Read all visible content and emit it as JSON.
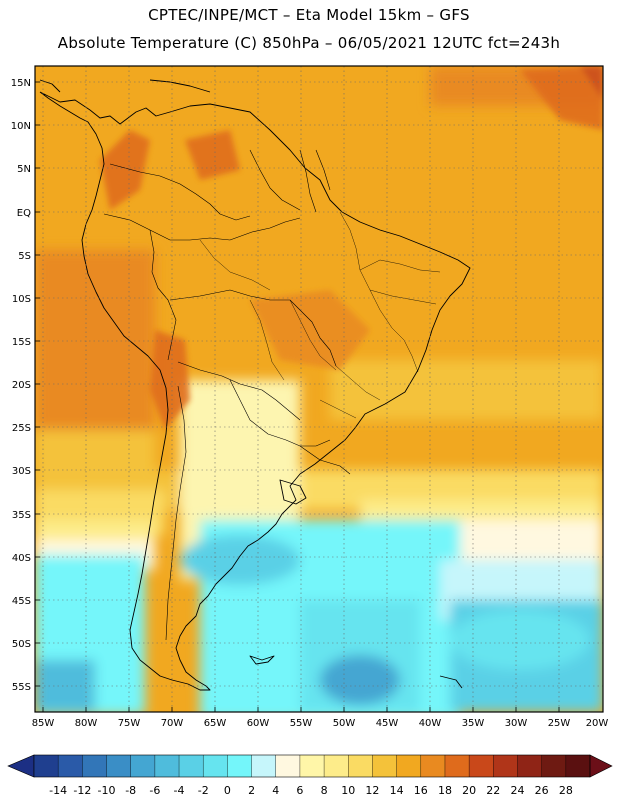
{
  "header": {
    "line1": "CPTEC/INPE/MCT –  Eta Model 15km – GFS",
    "line2": "Absolute Temperature (C) 850hPa – 06/05/2021 12UTC fct=243h"
  },
  "map": {
    "lat_labels": [
      "15N",
      "10N",
      "5N",
      "EQ",
      "5S",
      "10S",
      "15S",
      "20S",
      "25S",
      "30S",
      "35S",
      "40S",
      "45S",
      "50S",
      "55S"
    ],
    "lon_labels": [
      "85W",
      "80W",
      "75W",
      "70W",
      "65W",
      "60W",
      "55W",
      "50W",
      "45W",
      "40W",
      "35W",
      "30W",
      "25W",
      "20W"
    ],
    "extent": {
      "lon": [
        -86,
        -19.5
      ],
      "lat": [
        -58,
        16
      ]
    },
    "grid": true,
    "region": "South America"
  },
  "legend": {
    "units": "C",
    "ticks": [
      "-14",
      "-12",
      "-10",
      "-8",
      "-6",
      "-4",
      "-2",
      "0",
      "2",
      "4",
      "6",
      "8",
      "10",
      "12",
      "14",
      "16",
      "18",
      "20",
      "22",
      "24",
      "26",
      "28"
    ],
    "colors": [
      "#1f3f8f",
      "#2a5aa8",
      "#3276b8",
      "#3a8ec6",
      "#44a6d2",
      "#4fbcdc",
      "#5ad0e6",
      "#66e4ef",
      "#74f6fa",
      "#c6f6fb",
      "#fff8e0",
      "#fff6a8",
      "#fdec8a",
      "#fadb63",
      "#f4c23a",
      "#f1a820",
      "#e98a20",
      "#df6b1c",
      "#c9481a",
      "#b03519",
      "#8f2416",
      "#6e1a12",
      "#5a1010"
    ],
    "over_color": "#6b0f18",
    "under_color": "#1c2f84"
  }
}
